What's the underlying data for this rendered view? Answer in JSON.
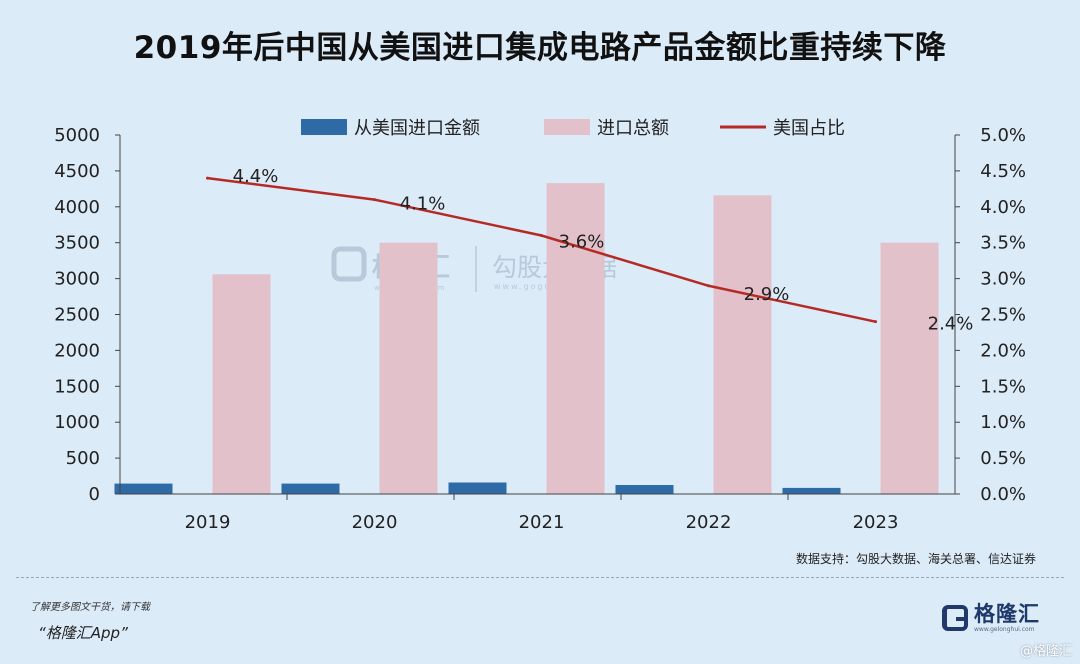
{
  "title": "2019年后中国从美国进口集成电路产品金额比重持续下降",
  "chart_data": {
    "type": "bar",
    "categories": [
      "2019",
      "2020",
      "2021",
      "2022",
      "2023"
    ],
    "series": [
      {
        "name": "从美国进口金额",
        "kind": "bar",
        "axis": "left",
        "color": "#2e6aa6",
        "values": [
          145,
          145,
          160,
          125,
          85
        ]
      },
      {
        "name": "进口总额",
        "kind": "bar",
        "axis": "left",
        "color": "#e2c1ca",
        "values": [
          3060,
          3500,
          4330,
          4160,
          3500
        ]
      },
      {
        "name": "美国占比",
        "kind": "line",
        "axis": "right",
        "color": "#b52a25",
        "values": [
          4.4,
          4.1,
          3.6,
          2.9,
          2.4
        ],
        "labels": [
          "4.4%",
          "4.1%",
          "3.6%",
          "2.9%",
          "2.4%"
        ]
      }
    ],
    "left_axis": {
      "min": 0,
      "max": 5000,
      "ticks": [
        "0",
        "500",
        "1000",
        "1500",
        "2000",
        "2500",
        "3000",
        "3500",
        "4000",
        "4500",
        "5000"
      ]
    },
    "right_axis": {
      "min": 0,
      "max": 5,
      "ticks": [
        "0.0%",
        "0.5%",
        "1.0%",
        "1.5%",
        "2.0%",
        "2.5%",
        "3.0%",
        "3.5%",
        "4.0%",
        "4.5%",
        "5.0%"
      ]
    },
    "legend_position": "top",
    "grid": false
  },
  "watermark": {
    "brand": "格隆汇",
    "brand_url": "www.gelonghui.com",
    "partner": "勾股大数据",
    "partner_url": "www.gogudata.com"
  },
  "source": "数据支持：勾股大数据、海关总署、信达证券",
  "promo": {
    "line1": "了解更多图文干货，请下载",
    "line2": "“格隆汇App”"
  },
  "brand": {
    "name": "格隆汇",
    "url": "www.gelonghui.com"
  },
  "corner_mark": "@格隆汇"
}
